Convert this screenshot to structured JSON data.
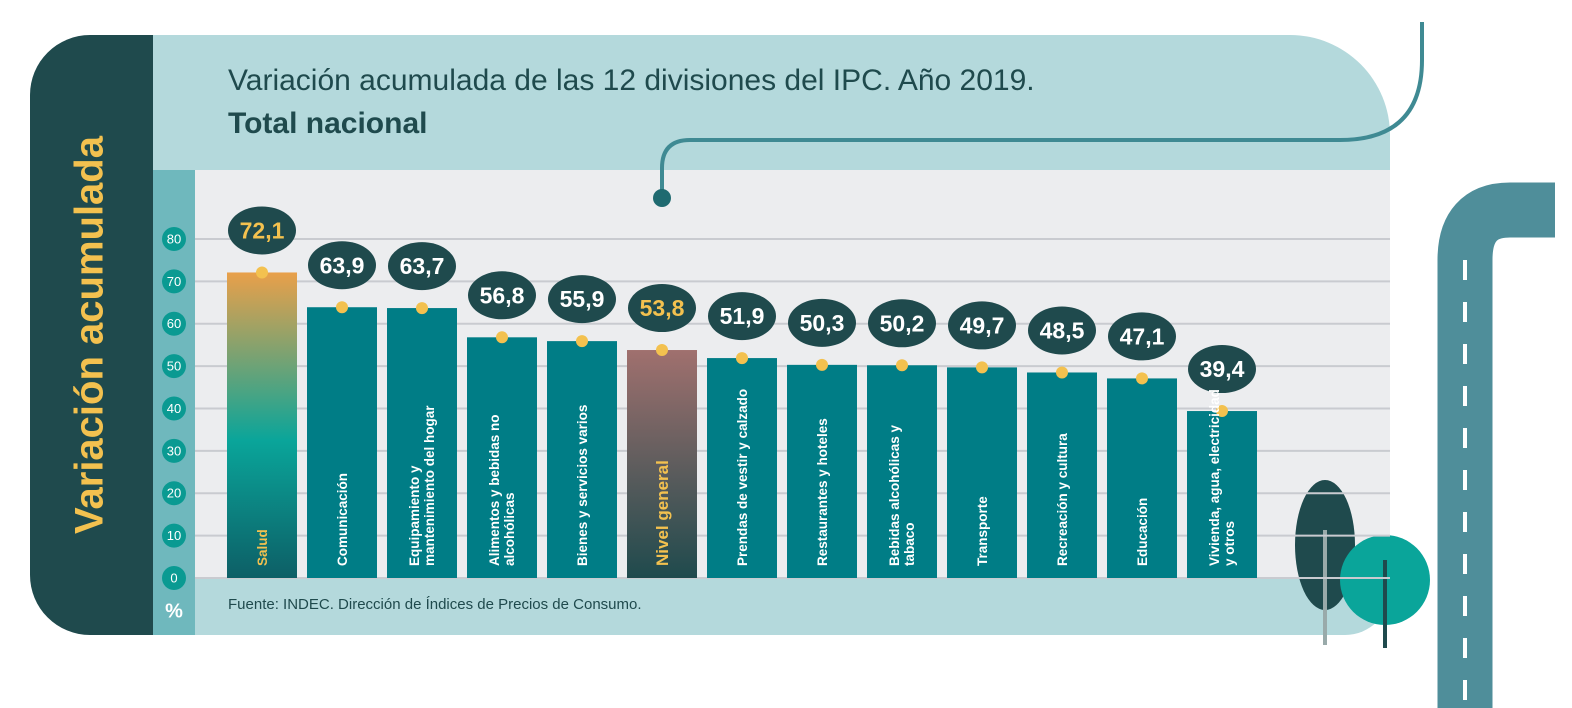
{
  "chart_data": {
    "type": "bar",
    "title": "Variación acumulada de las 12 divisiones del IPC. Año 2019.",
    "subtitle": "Total nacional",
    "y_label": "Variación acumulada",
    "y_unit": "%",
    "source": "Fuente: INDEC. Dirección de Índices de Precios de Consumo.",
    "categories": [
      "Salud",
      "Comunicación",
      "Equipamiento y mantenimiento del hogar",
      "Alimentos y bebidas no alcohólicas",
      "Bienes y servicios varios",
      "Nivel general",
      "Prendas de vestir y calzado",
      "Restaurantes y hoteles",
      "Bebidas alcohólicas y tabaco",
      "Transporte",
      "Recreación y cultura",
      "Educación",
      "Vivienda, agua, electricidad y otros"
    ],
    "values": [
      72.1,
      63.9,
      63.7,
      56.8,
      55.9,
      53.8,
      51.9,
      50.3,
      50.2,
      49.7,
      48.5,
      47.1,
      39.4
    ],
    "value_labels": [
      "72,1",
      "63,9",
      "63,7",
      "56,8",
      "55,9",
      "53,8",
      "51,9",
      "50,3",
      "50,2",
      "49,7",
      "48,5",
      "47,1",
      "39,4"
    ],
    "colors": [
      "#e9a04a",
      "#007d86",
      "#007d86",
      "#007d86",
      "#007d86",
      "#a0706e",
      "#007d86",
      "#007d86",
      "#007d86",
      "#007d86",
      "#007d86",
      "#007d86",
      "#007d86"
    ],
    "highlight_indices": [
      0,
      5
    ],
    "highlight_color": "#f3c14f",
    "ylim": [
      0,
      80
    ],
    "yticks": [
      0,
      10,
      20,
      30,
      40,
      50,
      60,
      70,
      80
    ],
    "grid": true
  }
}
